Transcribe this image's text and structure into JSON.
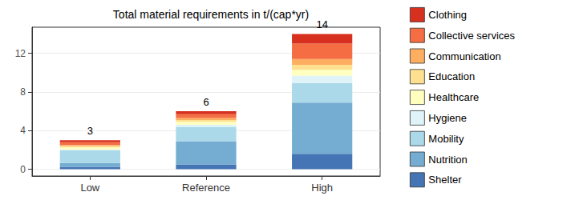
{
  "chart_data": {
    "type": "bar",
    "title": "Total material requirements in t/(cap*yr)",
    "categories": [
      "Low",
      "Reference",
      "High"
    ],
    "series": [
      {
        "name": "Shelter",
        "color": "#4575b4",
        "values": [
          0.25,
          0.5,
          1.6
        ]
      },
      {
        "name": "Nutrition",
        "color": "#74add1",
        "values": [
          0.4,
          2.4,
          5.3
        ]
      },
      {
        "name": "Mobility",
        "color": "#abd9e9",
        "values": [
          1.3,
          1.5,
          2.0
        ]
      },
      {
        "name": "Hygiene",
        "color": "#e0f3f8",
        "values": [
          0.1,
          0.2,
          0.8
        ]
      },
      {
        "name": "Healthcare",
        "color": "#ffffbf",
        "values": [
          0.2,
          0.3,
          0.6
        ]
      },
      {
        "name": "Education",
        "color": "#fee090",
        "values": [
          0.15,
          0.2,
          0.5
        ]
      },
      {
        "name": "Communication",
        "color": "#fdae61",
        "values": [
          0.1,
          0.2,
          0.6
        ]
      },
      {
        "name": "Collective services",
        "color": "#f46d43",
        "values": [
          0.3,
          0.4,
          1.6
        ]
      },
      {
        "name": "Clothing",
        "color": "#d7301f",
        "values": [
          0.2,
          0.3,
          1.0
        ]
      }
    ],
    "totals": [
      3,
      6,
      14
    ],
    "ylim": [
      -0.7,
      14.7
    ],
    "yticks": [
      0,
      4,
      8,
      12
    ],
    "stacked": true,
    "grid": true,
    "legend": "right"
  }
}
